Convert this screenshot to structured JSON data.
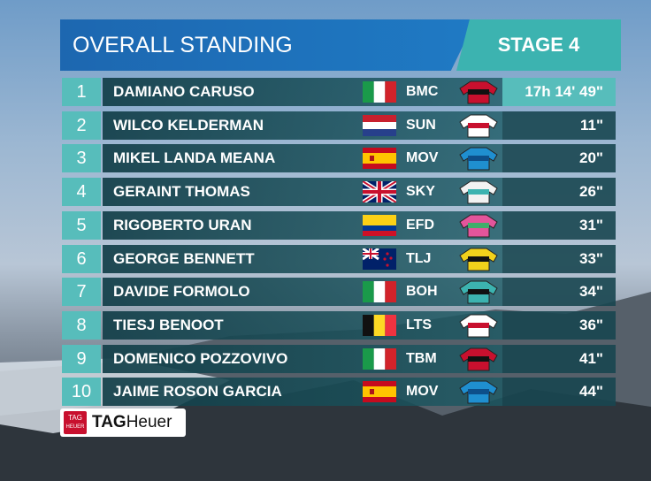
{
  "header": {
    "title": "OVERALL STANDING",
    "stage": "STAGE 4"
  },
  "rows": [
    {
      "rank": 1,
      "name": "DAMIANO CARUSO",
      "team": "BMC",
      "time": "17h 14' 49\""
    },
    {
      "rank": 2,
      "name": "WILCO KELDERMAN",
      "team": "SUN",
      "time": "11\""
    },
    {
      "rank": 3,
      "name": "MIKEL LANDA MEANA",
      "team": "MOV",
      "time": "20\""
    },
    {
      "rank": 4,
      "name": "GERAINT THOMAS",
      "team": "SKY",
      "time": "26\""
    },
    {
      "rank": 5,
      "name": "RIGOBERTO URAN",
      "team": "EFD",
      "time": "31\""
    },
    {
      "rank": 6,
      "name": "GEORGE BENNETT",
      "team": "TLJ",
      "time": "33\""
    },
    {
      "rank": 7,
      "name": "DAVIDE FORMOLO",
      "team": "BOH",
      "time": "34\""
    },
    {
      "rank": 8,
      "name": "TIESJ BENOOT",
      "team": "LTS",
      "time": "36\""
    },
    {
      "rank": 9,
      "name": "DOMENICO POZZOVIVO",
      "team": "TBM",
      "time": "41\""
    },
    {
      "rank": 10,
      "name": "JAIME ROSON GARCIA",
      "team": "MOV",
      "time": "44\""
    }
  ],
  "sponsor": {
    "badge": "TAG",
    "badge_sub": "HEUER",
    "brand_bold": "TAG",
    "brand": "Heuer"
  }
}
